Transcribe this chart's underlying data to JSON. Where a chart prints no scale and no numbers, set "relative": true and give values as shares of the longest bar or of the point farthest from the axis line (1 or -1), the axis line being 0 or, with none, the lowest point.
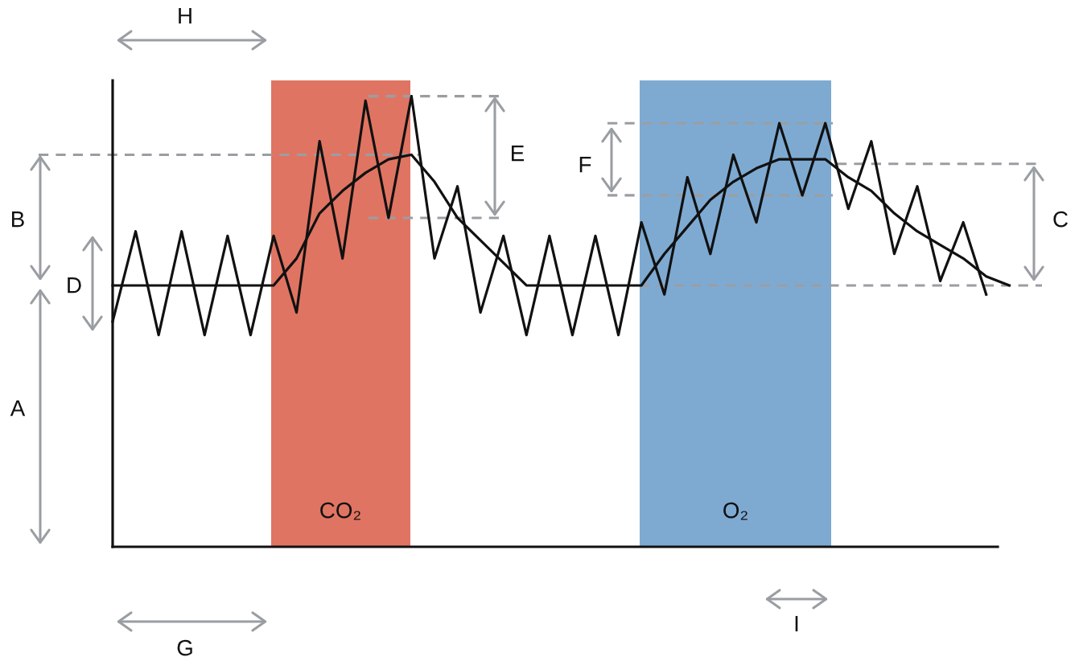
{
  "chart_data": {
    "type": "line",
    "relative": true,
    "categories": [
      null,
      null,
      null,
      null,
      null,
      null,
      null,
      null,
      null,
      null,
      null,
      null,
      null,
      null,
      null,
      null,
      null,
      null,
      null,
      null,
      null,
      null,
      null,
      null,
      null,
      null,
      null,
      null,
      null,
      null,
      null,
      null,
      null,
      null,
      null,
      null,
      null,
      null,
      null,
      null
    ],
    "series": [
      {
        "color": "#111111",
        "values": [
          0.5,
          0.7,
          0.47,
          0.7,
          0.47,
          0.69,
          0.47,
          0.69,
          0.52,
          0.9,
          0.64,
          0.99,
          0.73,
          1.0,
          0.64,
          0.8,
          0.52,
          0.69,
          0.47,
          0.69,
          0.47,
          0.69,
          0.47,
          0.72,
          0.56,
          0.82,
          0.65,
          0.87,
          0.72,
          0.94,
          0.78,
          0.94,
          0.75,
          0.9,
          0.65,
          0.8,
          0.59,
          0.72,
          0.56,
          null
        ]
      },
      {
        "color": "#111111",
        "values": [
          0.58,
          0.58,
          0.58,
          0.58,
          0.58,
          0.58,
          0.58,
          0.58,
          0.64,
          0.74,
          0.79,
          0.83,
          0.86,
          0.87,
          0.81,
          0.73,
          0.68,
          0.63,
          0.58,
          0.58,
          0.58,
          0.58,
          0.58,
          0.58,
          0.65,
          0.71,
          0.77,
          0.81,
          0.84,
          0.86,
          0.86,
          0.86,
          0.82,
          0.79,
          0.74,
          0.7,
          0.67,
          0.64,
          0.6,
          0.58
        ]
      }
    ],
    "ref_lines": [
      {
        "axis": "y",
        "value": 0.87,
        "color": "#9a9ea3",
        "line_style": "dashed"
      },
      {
        "axis": "y",
        "value": 1.0,
        "color": "#9a9ea3",
        "line_style": "dashed"
      },
      {
        "axis": "y",
        "value": 0.73,
        "color": "#9a9ea3",
        "line_style": "dashed"
      },
      {
        "axis": "y",
        "value": 0.94,
        "color": "#9a9ea3",
        "line_style": "dashed"
      },
      {
        "axis": "y",
        "value": 0.78,
        "color": "#9a9ea3",
        "line_style": "dashed"
      },
      {
        "axis": "y",
        "value": 0.85,
        "color": "#9a9ea3",
        "line_style": "dashed"
      },
      {
        "axis": "y",
        "value": 0.58,
        "color": "#9a9ea3",
        "line_style": "dashed"
      }
    ],
    "annotations": [
      "H",
      "B",
      "D",
      "A",
      "E",
      "F",
      "C",
      "I",
      "G",
      "CO₂",
      "O₂"
    ],
    "marker": "none"
  }
}
